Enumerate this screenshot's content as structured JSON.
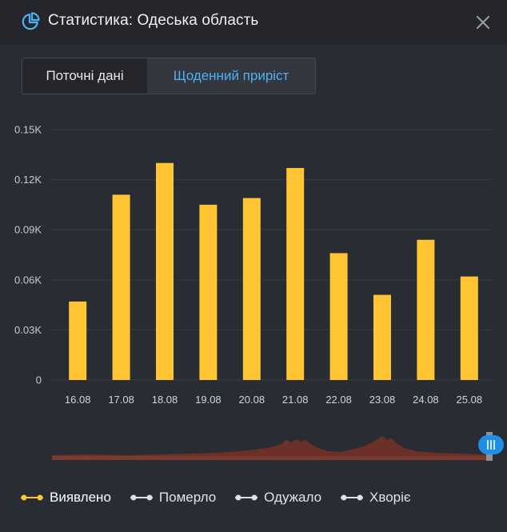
{
  "header": {
    "title": "Статистика: Одеська область",
    "icon": "pie-chart-icon",
    "close_icon": "close-icon"
  },
  "tabs": [
    {
      "label": "Поточні дані",
      "active": false
    },
    {
      "label": "Щоденний приріст",
      "active": true
    }
  ],
  "colors": {
    "accent": "#4db1f5",
    "bars": "#ffc533",
    "grid": "#3a3d45",
    "navigator": "#6b3128",
    "inactive_series": "#e0e0e0"
  },
  "chart_data": {
    "type": "bar",
    "categories": [
      "16.08",
      "17.08",
      "18.08",
      "19.08",
      "20.08",
      "21.08",
      "22.08",
      "23.08",
      "24.08",
      "25.08"
    ],
    "series": [
      {
        "name": "Виявлено",
        "values": [
          47,
          111,
          130,
          105,
          109,
          127,
          76,
          51,
          84,
          62
        ]
      }
    ],
    "yticks": [
      "0",
      "0.03K",
      "0.06K",
      "0.09K",
      "0.12K",
      "0.15K"
    ],
    "ylim": [
      0,
      150
    ],
    "grid": true,
    "legend_position": "bottom-left"
  },
  "legend": [
    {
      "label": "Виявлено",
      "color": "#ffc533",
      "active": true
    },
    {
      "label": "Померло",
      "color": "#e0e0e0",
      "active": false
    },
    {
      "label": "Одужало",
      "color": "#e0e0e0",
      "active": false
    },
    {
      "label": "Хворіє",
      "color": "#e0e0e0",
      "active": false
    }
  ]
}
